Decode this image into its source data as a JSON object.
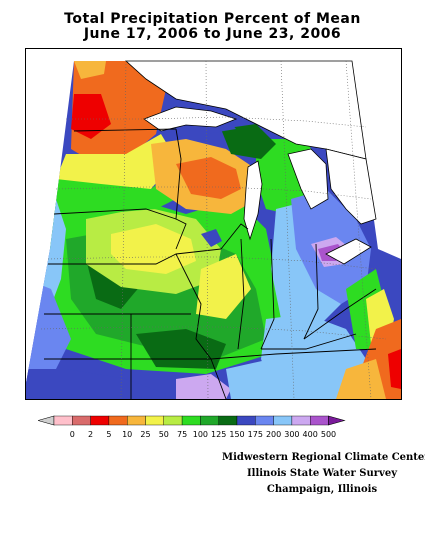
{
  "title": {
    "line1": "Total Precipitation Percent of Mean",
    "line2": "June 17, 2006 to June 23, 2006"
  },
  "legend": {
    "labels": [
      "0",
      "2",
      "5",
      "10",
      "25",
      "50",
      "75",
      "100",
      "125",
      "150",
      "175",
      "200",
      "300",
      "400",
      "500"
    ],
    "colors": [
      "#ffc0cb",
      "#d96b6b",
      "#ee0000",
      "#f06a1e",
      "#f7b63c",
      "#f2f24a",
      "#b8ec44",
      "#2edc22",
      "#20a82a",
      "#096b14",
      "#3b48c0",
      "#6a86f0",
      "#88c6f8",
      "#cca8f0",
      "#aa54cc",
      "#7a1a9a"
    ],
    "below_min_color": "#cfcfcf"
  },
  "credits": {
    "line1": "Midwestern Regional Climate Center",
    "line2": "Illinois State Water Survey",
    "line3": "Champaign, Illinois"
  }
}
